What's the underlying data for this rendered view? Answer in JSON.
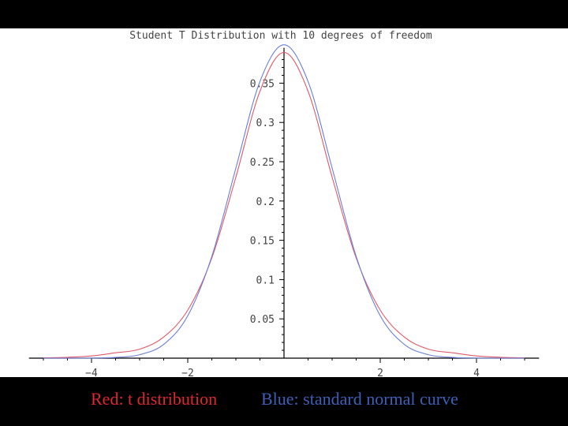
{
  "chart_data": {
    "type": "line",
    "title": "Student  T Distribution   with  10  degrees   of  freedom",
    "xlabel": "",
    "ylabel": "",
    "xlim": [
      -5.3,
      5.3
    ],
    "ylim": [
      0,
      0.395
    ],
    "xticks": [
      {
        "value": -4,
        "label": "−4"
      },
      {
        "value": -2,
        "label": "−2"
      },
      {
        "value": 2,
        "label": "2"
      },
      {
        "value": 4,
        "label": "4"
      }
    ],
    "yticks": [
      {
        "value": 0.05,
        "label": "0.05"
      },
      {
        "value": 0.1,
        "label": "0.1"
      },
      {
        "value": 0.15,
        "label": "0.15"
      },
      {
        "value": 0.2,
        "label": "0.2"
      },
      {
        "value": 0.25,
        "label": "0.25"
      },
      {
        "value": 0.3,
        "label": "0.3"
      },
      {
        "value": 0.35,
        "label": "0.35"
      }
    ],
    "grid": false,
    "x": [
      -5,
      -4.5,
      -4,
      -3.5,
      -3,
      -2.5,
      -2,
      -1.5,
      -1,
      -0.5,
      0,
      0.5,
      1,
      1.5,
      2,
      2.5,
      3,
      3.5,
      4,
      4.5,
      5
    ],
    "series": [
      {
        "color": "#e05a6a",
        "values": [
          0.0004,
          0.0011,
          0.0028,
          0.0068,
          0.0114,
          0.0269,
          0.0611,
          0.1274,
          0.2304,
          0.3397,
          0.3891,
          0.3397,
          0.2304,
          0.1274,
          0.0611,
          0.0269,
          0.0114,
          0.0068,
          0.0028,
          0.0011,
          0.0004
        ]
      },
      {
        "color": "#6a7fd8",
        "values": [
          0.0,
          0.0,
          0.0001,
          0.0009,
          0.0044,
          0.0175,
          0.054,
          0.1295,
          0.242,
          0.3521,
          0.3989,
          0.3521,
          0.242,
          0.1295,
          0.054,
          0.0175,
          0.0044,
          0.0009,
          0.0001,
          0.0,
          0.0
        ]
      }
    ]
  },
  "caption": {
    "red": {
      "text": "Red: t distribution",
      "color": "#e0262e"
    },
    "blue": {
      "text": "Blue: standard normal curve",
      "color": "#3c60b8"
    }
  }
}
